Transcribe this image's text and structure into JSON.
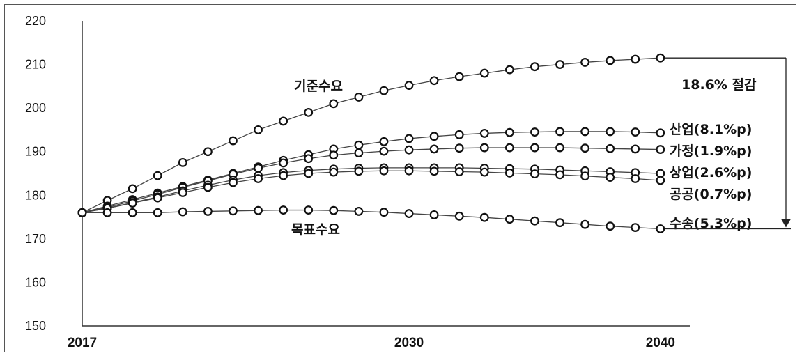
{
  "chart_data": {
    "type": "line",
    "x": [
      2017,
      2018,
      2019,
      2020,
      2021,
      2022,
      2023,
      2024,
      2025,
      2026,
      2027,
      2028,
      2029,
      2030,
      2031,
      2032,
      2033,
      2034,
      2035,
      2036,
      2037,
      2038,
      2039,
      2040
    ],
    "xticks": [
      2017,
      2030,
      2040
    ],
    "yticks": [
      150,
      160,
      170,
      180,
      190,
      200,
      210,
      220
    ],
    "ylim": [
      150,
      220
    ],
    "xlim": [
      2017,
      2042
    ],
    "grid": false,
    "series": [
      {
        "name": "기준수요",
        "values": [
          176,
          178.8,
          181.5,
          184.5,
          187.5,
          190,
          192.5,
          195,
          197,
          199,
          201,
          202.5,
          204,
          205.2,
          206.3,
          207.2,
          208,
          208.8,
          209.5,
          210,
          210.5,
          210.9,
          211.2,
          211.5
        ]
      },
      {
        "name": "산업(8.1%p)",
        "values": [
          176,
          177.5,
          179,
          180.5,
          182,
          183.5,
          185,
          186.5,
          188,
          189.3,
          190.6,
          191.5,
          192.3,
          193,
          193.5,
          193.9,
          194.2,
          194.4,
          194.5,
          194.6,
          194.6,
          194.6,
          194.5,
          194.3
        ]
      },
      {
        "name": "가정(1.9%p)",
        "values": [
          176,
          177.2,
          178.7,
          180.2,
          181.8,
          183.3,
          184.8,
          186.2,
          187.4,
          188.4,
          189.2,
          189.7,
          190.1,
          190.4,
          190.6,
          190.8,
          190.9,
          190.9,
          190.9,
          190.9,
          190.8,
          190.7,
          190.6,
          190.5
        ]
      },
      {
        "name": "상업(2.6%p)",
        "values": [
          176,
          177,
          178.3,
          179.6,
          181,
          182.3,
          183.5,
          184.5,
          185.2,
          185.7,
          186,
          186.2,
          186.3,
          186.3,
          186.3,
          186.3,
          186.2,
          186.1,
          186,
          185.8,
          185.6,
          185.4,
          185.2,
          185
        ]
      },
      {
        "name": "공공(0.7%p)",
        "values": [
          176,
          177,
          178.2,
          179.4,
          180.6,
          181.8,
          182.9,
          183.8,
          184.5,
          185,
          185.3,
          185.5,
          185.6,
          185.6,
          185.5,
          185.4,
          185.3,
          185.1,
          184.9,
          184.7,
          184.4,
          184.1,
          183.8,
          183.4
        ]
      },
      {
        "name": "수송(5.3%p)",
        "values": [
          176,
          176,
          176,
          176,
          176.2,
          176.3,
          176.4,
          176.5,
          176.6,
          176.6,
          176.5,
          176.3,
          176.1,
          175.8,
          175.5,
          175.2,
          174.9,
          174.5,
          174.1,
          173.7,
          173.3,
          172.9,
          172.6,
          172.3
        ]
      }
    ],
    "annotations": [
      "기준수요",
      "목표수요",
      "18.6% 절감"
    ]
  }
}
